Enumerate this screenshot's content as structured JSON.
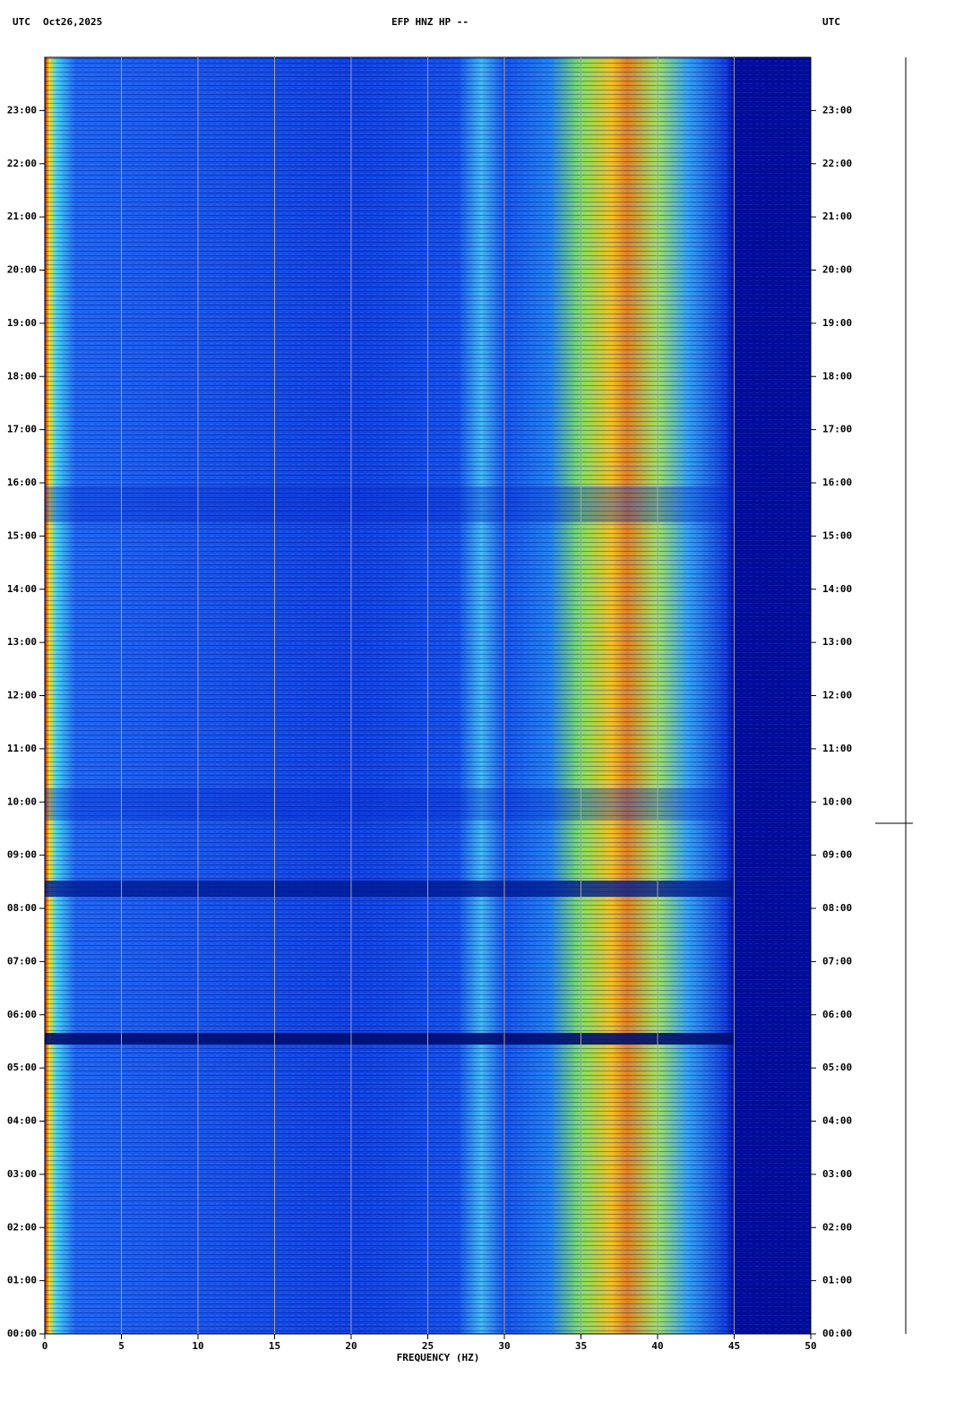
{
  "chart_data": {
    "type": "spectrogram",
    "title": "EFP HNZ HP --",
    "left_timezone": "UTC",
    "date": "Oct26,2025",
    "right_timezone": "UTC",
    "x_label": "FREQUENCY (HZ)",
    "xlim": [
      0,
      50
    ],
    "xticks": [
      0,
      5,
      10,
      15,
      20,
      25,
      30,
      35,
      40,
      45,
      50
    ],
    "ylim": [
      0,
      24
    ],
    "yticks": [
      {
        "value": 0,
        "label": "00:00"
      },
      {
        "value": 1,
        "label": "01:00"
      },
      {
        "value": 2,
        "label": "02:00"
      },
      {
        "value": 3,
        "label": "03:00"
      },
      {
        "value": 4,
        "label": "04:00"
      },
      {
        "value": 5,
        "label": "05:00"
      },
      {
        "value": 6,
        "label": "06:00"
      },
      {
        "value": 7,
        "label": "07:00"
      },
      {
        "value": 8,
        "label": "08:00"
      },
      {
        "value": 9,
        "label": "09:00"
      },
      {
        "value": 10,
        "label": "10:00"
      },
      {
        "value": 11,
        "label": "11:00"
      },
      {
        "value": 12,
        "label": "12:00"
      },
      {
        "value": 13,
        "label": "13:00"
      },
      {
        "value": 14,
        "label": "14:00"
      },
      {
        "value": 15,
        "label": "15:00"
      },
      {
        "value": 16,
        "label": "16:00"
      },
      {
        "value": 17,
        "label": "17:00"
      },
      {
        "value": 18,
        "label": "18:00"
      },
      {
        "value": 19,
        "label": "19:00"
      },
      {
        "value": 20,
        "label": "20:00"
      },
      {
        "value": 21,
        "label": "21:00"
      },
      {
        "value": 22,
        "label": "22:00"
      },
      {
        "value": 23,
        "label": "23:00"
      }
    ],
    "grid": true
  }
}
